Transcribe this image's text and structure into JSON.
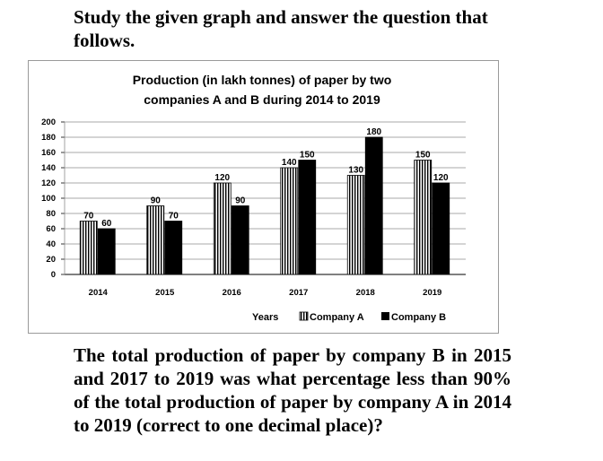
{
  "intro_text": "Study the given graph and answer the question that follows.",
  "question_text": "The total production of paper by company B in 2015 and 2017 to 2019 was what percentage less than 90% of the total production of paper by company A in 2014 to 2019 (correct to one decimal place)?",
  "chart_data": {
    "type": "bar",
    "title_line1": "Production (in lakh tonnes) of paper by two",
    "title_line2": "companies A and B during 2014 to 2019",
    "categories": [
      "2014",
      "2015",
      "2016",
      "2017",
      "2018",
      "2019"
    ],
    "series": [
      {
        "name": "Company A",
        "values": [
          70,
          90,
          120,
          140,
          130,
          150
        ],
        "fill": "striped"
      },
      {
        "name": "Company B",
        "values": [
          60,
          70,
          90,
          150,
          180,
          120
        ],
        "fill": "#000000"
      }
    ],
    "xlabel": "Years",
    "ylabel": "",
    "ylim": [
      0,
      200
    ],
    "yticks": [
      "0",
      "20",
      "40",
      "60",
      "80",
      "100",
      "120",
      "140",
      "160",
      "180",
      "200"
    ],
    "grid": true,
    "legend_position": "bottom",
    "data_labels": true
  }
}
